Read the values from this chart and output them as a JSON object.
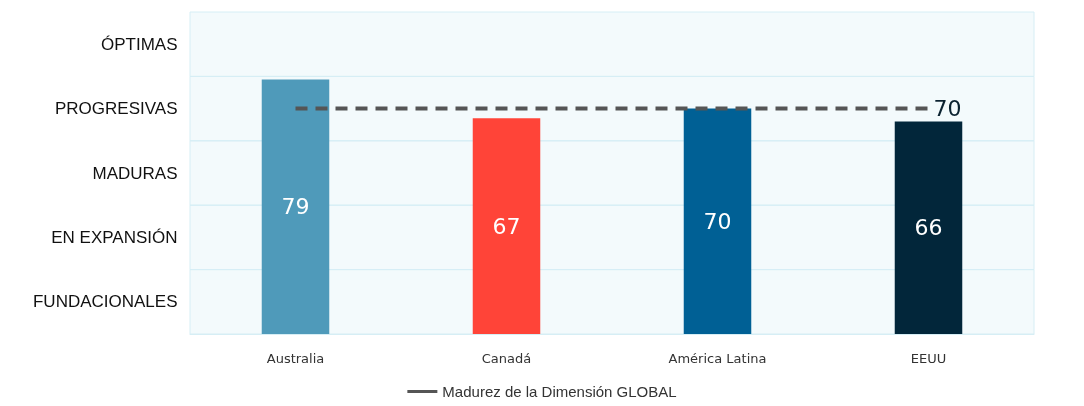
{
  "chart_data": {
    "type": "bar",
    "categories": [
      "Australia",
      "Canadá",
      "América Latina",
      "EEUU"
    ],
    "series": [
      {
        "colors": [
          "#4f9aba",
          "#ff4438",
          "#006095",
          "#02263a"
        ],
        "values": [
          79,
          67,
          70,
          66
        ]
      },
      {
        "type": "line",
        "name": "Madurez de la Dimensión GLOBAL",
        "color": "#555555",
        "line_style": "dashed",
        "marker": "none",
        "values": [
          70,
          70,
          70,
          70
        ],
        "value_labels": [
          null,
          null,
          null,
          "70"
        ]
      }
    ],
    "data_labels": true,
    "ylim": [
      0,
      100
    ],
    "bands": [
      {
        "axis": "y",
        "from": 0,
        "to": 20,
        "label": "FUNDACIONALES"
      },
      {
        "axis": "y",
        "from": 20,
        "to": 40,
        "label": "EN EXPANSIÓN"
      },
      {
        "axis": "y",
        "from": 40,
        "to": 60,
        "label": "MADURAS"
      },
      {
        "axis": "y",
        "from": 60,
        "to": 80,
        "label": "PROGRESIVAS"
      },
      {
        "axis": "y",
        "from": 80,
        "to": 100,
        "label": "ÓPTIMAS"
      }
    ],
    "legend": "bottom"
  }
}
